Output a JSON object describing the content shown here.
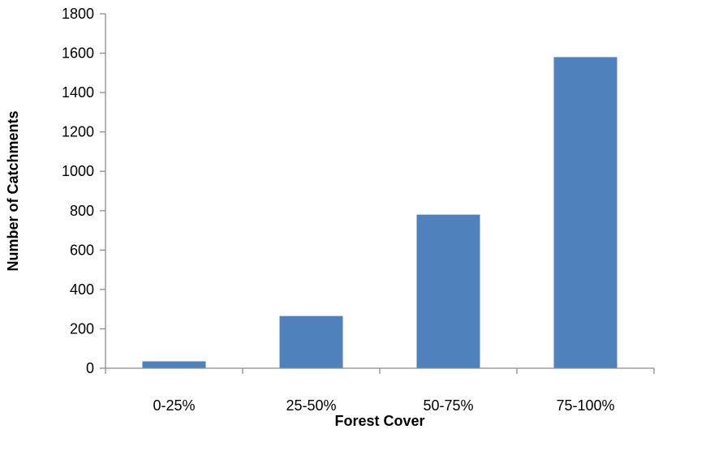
{
  "chart_data": {
    "type": "bar",
    "title": "",
    "xlabel": "Forest Cover",
    "ylabel": "Number of Catchments",
    "categories": [
      "0-25%",
      "25-50%",
      "50-75%",
      "75-100%"
    ],
    "values": [
      35,
      265,
      780,
      1580
    ],
    "ylim": [
      0,
      1800
    ],
    "yticks": [
      "0",
      "200",
      "400",
      "600",
      "800",
      "1000",
      "1200",
      "1400",
      "1600",
      "1800"
    ],
    "grid": false,
    "legend": "none",
    "bar_color": "#4f81bd"
  }
}
